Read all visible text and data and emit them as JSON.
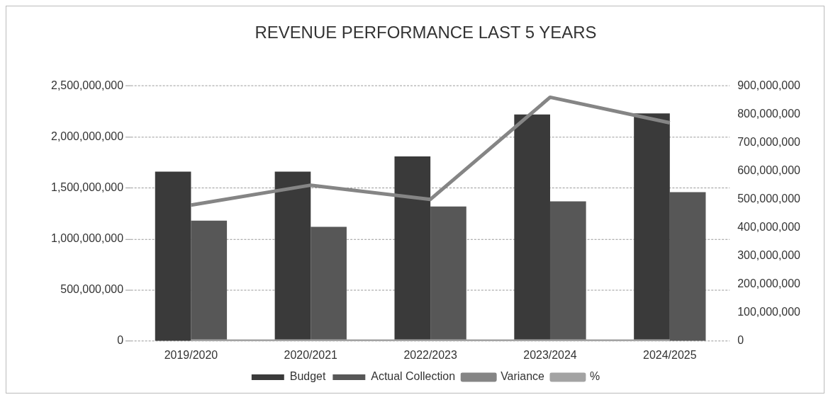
{
  "chart_data": {
    "type": "bar",
    "title": "REVENUE PERFORMANCE LAST 5 YEARS",
    "categories": [
      "2019/2020",
      "2020/2021",
      "2022/2023",
      "2023/2024",
      "2024/2025"
    ],
    "series": [
      {
        "name": "Budget",
        "color": "#3a3a3a",
        "values": [
          1660000000,
          1660000000,
          1810000000,
          2220000000,
          2230000000
        ]
      },
      {
        "name": "Actual Collection",
        "color": "#575757",
        "values": [
          1180000000,
          1120000000,
          1320000000,
          1370000000,
          1460000000
        ]
      },
      {
        "name": "Variance",
        "type": "line",
        "axis": "y2",
        "color": "#858585",
        "values": [
          480000000,
          550000000,
          500000000,
          860000000,
          770000000
        ]
      },
      {
        "name": "%",
        "type": "line",
        "axis": "y2",
        "color": "#a3a3a3",
        "values": [
          0,
          0,
          0,
          0,
          0
        ]
      }
    ],
    "ylim": [
      0,
      2500000000
    ],
    "yticks": [
      0,
      {
        "value": 500000000,
        "label": "500,000,000"
      },
      {
        "value": 1000000000,
        "label": "1,000,000,000"
      },
      {
        "value": 1500000000,
        "label": "1,500,000,000"
      },
      {
        "value": 2000000000,
        "label": "2,000,000,000"
      },
      {
        "value": 2500000000,
        "label": "2,500,000,000"
      }
    ],
    "y2lim": [
      0,
      900000000
    ],
    "y2ticks": [
      0,
      {
        "value": 100000000,
        "label": "100,000,000"
      },
      {
        "value": 200000000,
        "label": "200,000,000"
      },
      {
        "value": 300000000,
        "label": "300,000,000"
      },
      {
        "value": 400000000,
        "label": "400,000,000"
      },
      {
        "value": 500000000,
        "label": "500,000,000"
      },
      {
        "value": 600000000,
        "label": "600,000,000"
      },
      {
        "value": 700000000,
        "label": "700,000,000"
      },
      {
        "value": 800000000,
        "label": "800,000,000"
      },
      {
        "value": 900000000,
        "label": "900,000,000"
      }
    ],
    "grid": "y",
    "legend": "bottom",
    "marker": "none"
  }
}
